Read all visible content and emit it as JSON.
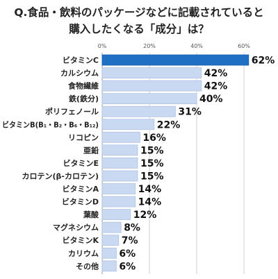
{
  "title_lines": [
    "Q.食品・飲料のパッケージなどに記載されていると",
    "購入したくなる「成分」は？"
  ],
  "chart_data": {
    "type": "bar",
    "orientation": "horizontal",
    "categories": [
      "ビタミンC",
      "カルシウム",
      "食物繊維",
      "鉄(鉄分)",
      "ポリフェノール",
      "ビタミンB(B₁・B₂・B₆・B₁₂)",
      "リコピン",
      "亜鉛",
      "ビタミンE",
      "カロテン(β-カロテン)",
      "ビタミンA",
      "ビタミンD",
      "葉酸",
      "マグネシウム",
      "ビタミンK",
      "カリウム",
      "その他"
    ],
    "values": [
      62,
      42,
      42,
      40,
      31,
      22,
      16,
      15,
      15,
      15,
      14,
      14,
      12,
      8,
      7,
      6,
      6
    ],
    "value_labels": [
      "62%",
      "42%",
      "42%",
      "40%",
      "31%",
      "22%",
      "16%",
      "15%",
      "15%",
      "15%",
      "14%",
      "14%",
      "12%",
      "8%",
      "7%",
      "6%",
      "6%"
    ],
    "xticks": [
      "0%",
      "20%",
      "40%",
      "60%"
    ],
    "tick_values": [
      0,
      20,
      40,
      60
    ],
    "xlim": [
      0,
      70
    ],
    "grid": true,
    "legend": "none",
    "colors": {
      "highlight": "#1f6fc5",
      "bar": "#c9d9f1",
      "bar_edge": "#aec3e3",
      "grid": "#d0d0d0"
    }
  }
}
